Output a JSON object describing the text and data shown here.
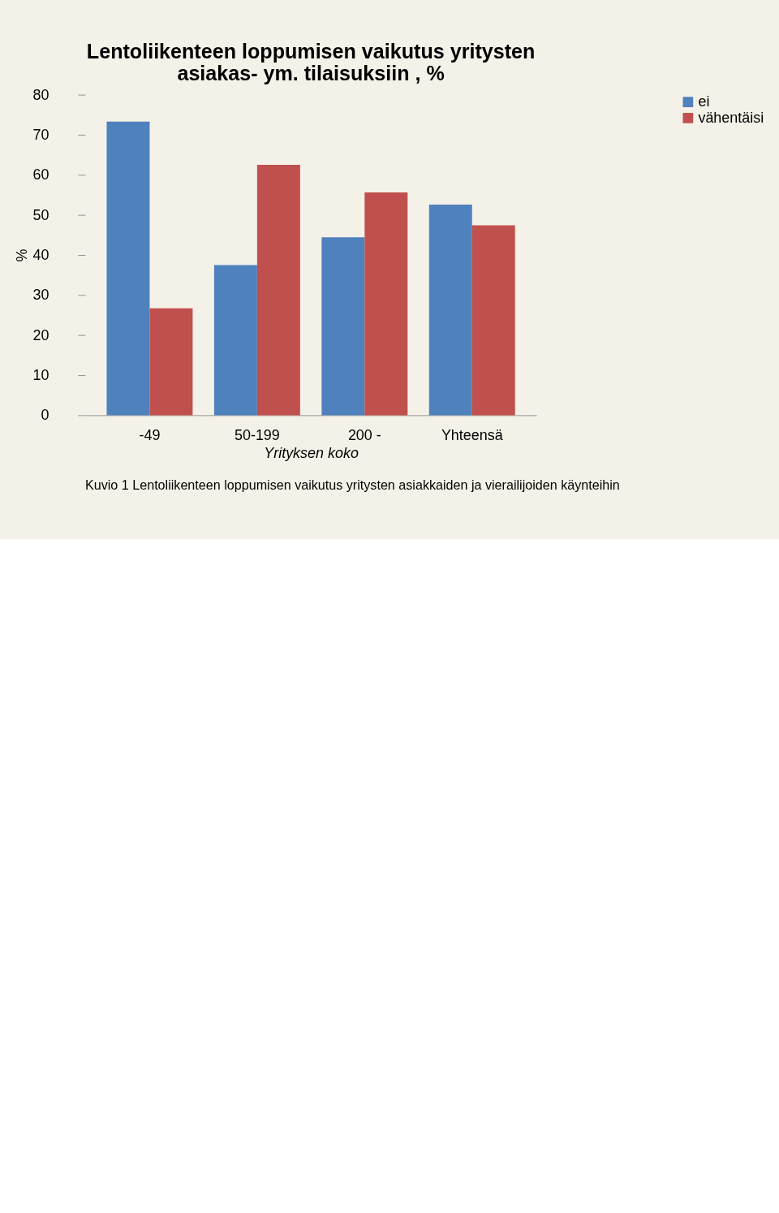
{
  "chart_data": {
    "type": "bar",
    "title": [
      "Lentoliikenteen loppumisen vaikutus yritysten",
      "asiakas- ym. tilaisuksiin , %"
    ],
    "categories": [
      "-49",
      "50-199",
      "200 -",
      "Yhteensä"
    ],
    "series": [
      {
        "name": "ei",
        "color": "#4f81bd",
        "values": [
          73.3,
          37.5,
          44.4,
          52.6
        ]
      },
      {
        "name": "vähentäisi",
        "color": "#c0504d",
        "values": [
          26.7,
          62.5,
          55.6,
          47.4
        ]
      }
    ],
    "xlabel": "Yrityksen koko",
    "ylabel": "%",
    "ylim": [
      0,
      80
    ],
    "yticks": [
      0,
      10,
      20,
      30,
      40,
      50,
      60,
      70,
      80
    ],
    "legend": "right",
    "annotations": [
      "Kuvio 1 Lentoliikenteen loppumisen vaikutus yritysten asiakkaiden ja vierailijoiden käynteihin"
    ]
  }
}
